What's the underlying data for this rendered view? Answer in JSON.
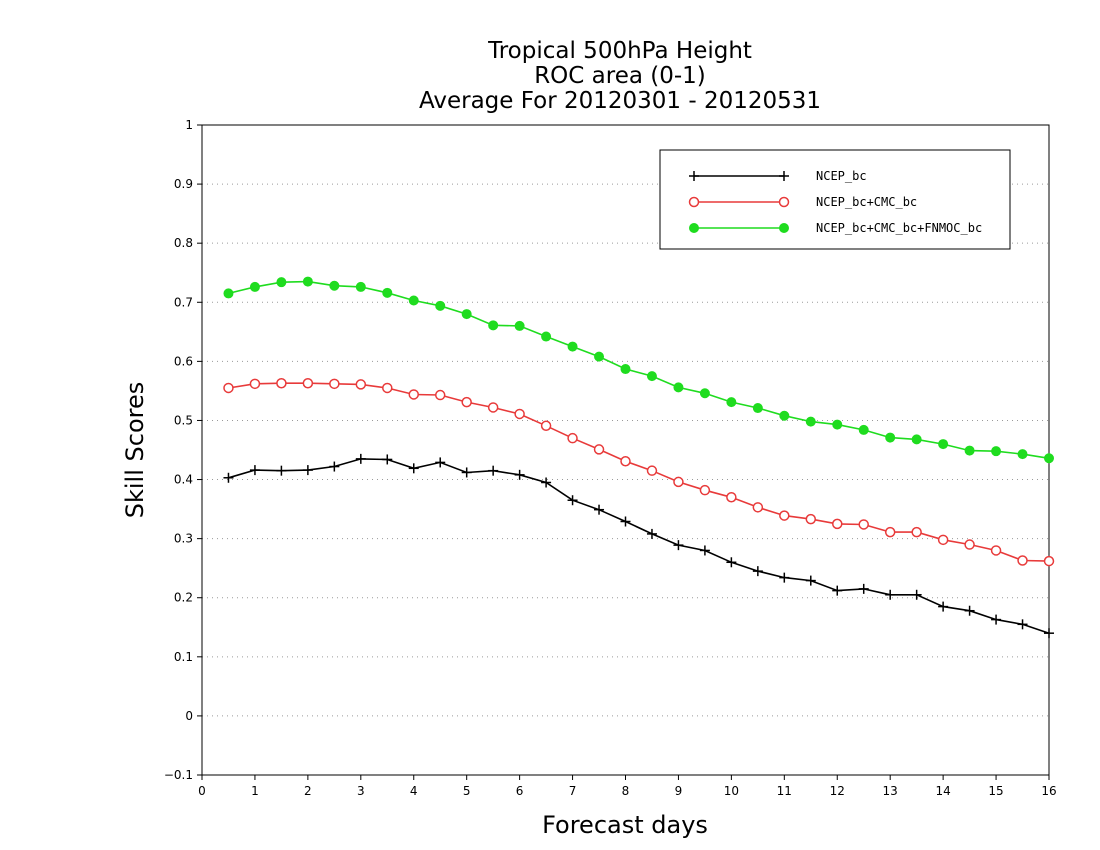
{
  "chart_data": {
    "type": "line",
    "title": [
      "Tropical 500hPa Height",
      "ROC area (0-1)",
      "Average For 20120301 - 20120531"
    ],
    "xlabel": "Forecast days",
    "ylabel": "Skill Scores",
    "xlim": [
      0,
      16
    ],
    "ylim": [
      -0.1,
      1
    ],
    "xticks": [
      "0",
      "1",
      "2",
      "3",
      "4",
      "5",
      "6",
      "7",
      "8",
      "9",
      "10",
      "11",
      "12",
      "13",
      "14",
      "15",
      "16"
    ],
    "yticks": [
      "−0.1",
      "0",
      "0.1",
      "0.2",
      "0.3",
      "0.4",
      "0.5",
      "0.6",
      "0.7",
      "0.8",
      "0.9",
      "1"
    ],
    "grid": "horizontal dotted",
    "legend_position": "top-right",
    "x": [
      0.5,
      1,
      1.5,
      2,
      2.5,
      3,
      3.5,
      4,
      4.5,
      5,
      5.5,
      6,
      6.5,
      7,
      7.5,
      8,
      8.5,
      9,
      9.5,
      10,
      10.5,
      11,
      11.5,
      12,
      12.5,
      13,
      13.5,
      14,
      14.5,
      15,
      15.5,
      16
    ],
    "series": [
      {
        "name": "NCEP_bc",
        "color": "#000000",
        "marker": "plus",
        "values": [
          0.403,
          0.416,
          0.415,
          0.416,
          0.422,
          0.435,
          0.434,
          0.419,
          0.429,
          0.412,
          0.415,
          0.408,
          0.395,
          0.365,
          0.349,
          0.329,
          0.308,
          0.289,
          0.28,
          0.26,
          0.245,
          0.234,
          0.229,
          0.212,
          0.215,
          0.205,
          0.205,
          0.185,
          0.178,
          0.163,
          0.155,
          0.14
        ]
      },
      {
        "name": "NCEP_bc+CMC_bc",
        "color": "#e83a3a",
        "marker": "open-circle",
        "values": [
          0.555,
          0.562,
          0.563,
          0.563,
          0.562,
          0.561,
          0.555,
          0.544,
          0.543,
          0.531,
          0.522,
          0.511,
          0.491,
          0.47,
          0.451,
          0.431,
          0.415,
          0.396,
          0.382,
          0.37,
          0.353,
          0.339,
          0.333,
          0.325,
          0.324,
          0.311,
          0.311,
          0.298,
          0.29,
          0.28,
          0.263,
          0.262
        ]
      },
      {
        "name": "NCEP_bc+CMC_bc+FNMOC_bc",
        "color": "#1fdc1f",
        "marker": "filled-circle",
        "values": [
          0.715,
          0.726,
          0.734,
          0.735,
          0.728,
          0.726,
          0.716,
          0.703,
          0.694,
          0.68,
          0.661,
          0.66,
          0.642,
          0.625,
          0.608,
          0.587,
          0.575,
          0.556,
          0.546,
          0.531,
          0.521,
          0.508,
          0.498,
          0.493,
          0.484,
          0.471,
          0.468,
          0.46,
          0.449,
          0.448,
          0.443,
          0.436
        ]
      }
    ]
  }
}
